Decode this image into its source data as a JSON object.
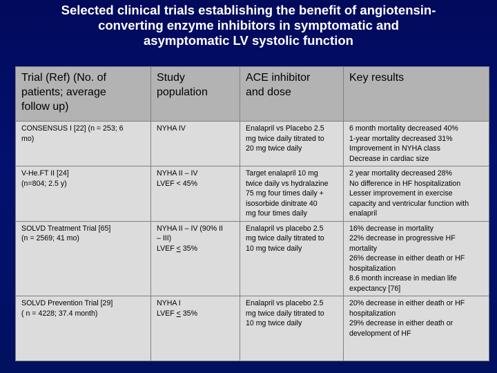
{
  "title": {
    "line1": "Selected clinical trials establishing the benefit of angiotensin-",
    "line2": "converting enzyme inhibitors in symptomatic and",
    "line3": "asymptomatic LV systolic function"
  },
  "table": {
    "headers": [
      [
        "Trial (Ref) (No. of",
        "patients; average",
        "follow up)"
      ],
      [
        "Study",
        "population"
      ],
      [
        "ACE inhibitor",
        "and dose"
      ],
      [
        "Key results"
      ]
    ],
    "rows": [
      {
        "trial": [
          "CONSENSUS I [22] (n = 253; 6",
          "mo)"
        ],
        "population": [
          "NYHA IV"
        ],
        "dose": [
          "Enalapril vs Placebo 2.5",
          "mg twice daily titrated to",
          "20 mg twice daily"
        ],
        "results": [
          "6 month mortality decreased 40%",
          "1-year mortality decreased 31%",
          "Improvement in NYHA class",
          "Decrease in cardiac size"
        ]
      },
      {
        "trial": [
          "V-He.FT II [24]",
          "(n=804; 2.5 y)"
        ],
        "population": [
          "NYHA II – IV",
          "LVEF < 45%"
        ],
        "dose": [
          "Target enalapril 10 mg",
          "twice daily vs hydralazine",
          "75 mg four times daily +",
          "isosorbide dinitrate 40",
          "mg four times daily"
        ],
        "results": [
          "2 year mortality decreased 28%",
          "No difference in HF hospitalization",
          "Lesser improvement in exercise",
          "capacity and ventricular function with",
          "enalapril"
        ]
      },
      {
        "trial": [
          "SOLVD Treatment Trial [65]",
          "(n = 2569; 41 mo)"
        ],
        "population_lines": [
          "NYHA II – IV (90% II",
          "– III)"
        ],
        "population_ef_prefix": "LVEF ",
        "population_ef_sym": "<",
        "population_ef_value": " 35%",
        "dose": [
          "Enalapril vs placebo 2.5",
          "mg twice daily titrated to",
          "10 mg twice daily"
        ],
        "results": [
          "16% decrease in mortality",
          "22% decrease in progressive HF",
          "mortality",
          "26% decrease in either death or HF",
          "hospitalization",
          "8.6 month increase in median life",
          "expectancy [76]"
        ]
      },
      {
        "trial": [
          "SOLVD Prevention Trial [29]",
          "( n = 4228; 37.4 month)"
        ],
        "population_lines": [
          "NYHA I"
        ],
        "population_ef_prefix": "LVEF ",
        "population_ef_sym": "<",
        "population_ef_value": " 35%",
        "dose": [
          "Enalapril vs placebo 2.5",
          "mg twice daily titrated to",
          "10 mg twice daily"
        ],
        "results": [
          "20% decrease in either death or HF",
          "hospitalization",
          "29% decrease in either death or",
          "development of HF"
        ]
      }
    ]
  }
}
